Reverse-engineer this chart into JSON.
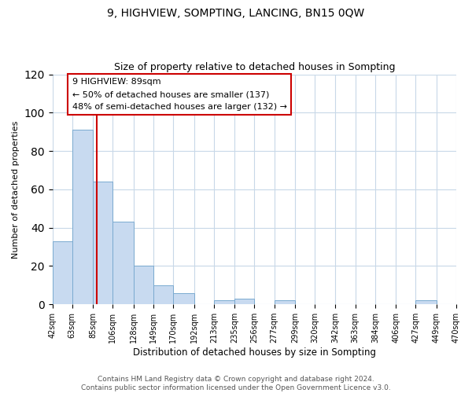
{
  "title": "9, HIGHVIEW, SOMPTING, LANCING, BN15 0QW",
  "subtitle": "Size of property relative to detached houses in Sompting",
  "xlabel": "Distribution of detached houses by size in Sompting",
  "ylabel": "Number of detached properties",
  "bin_edges": [
    42,
    63,
    85,
    106,
    128,
    149,
    170,
    192,
    213,
    235,
    256,
    277,
    299,
    320,
    342,
    363,
    384,
    406,
    427,
    449,
    470
  ],
  "bin_labels": [
    "42sqm",
    "63sqm",
    "85sqm",
    "106sqm",
    "128sqm",
    "149sqm",
    "170sqm",
    "192sqm",
    "213sqm",
    "235sqm",
    "256sqm",
    "277sqm",
    "299sqm",
    "320sqm",
    "342sqm",
    "363sqm",
    "384sqm",
    "406sqm",
    "427sqm",
    "449sqm",
    "470sqm"
  ],
  "counts": [
    33,
    91,
    64,
    43,
    20,
    10,
    6,
    0,
    2,
    3,
    0,
    2,
    0,
    0,
    0,
    0,
    0,
    0,
    2,
    0
  ],
  "bar_color": "#c8daf0",
  "bar_edge_color": "#7aaad0",
  "vline_x": 89,
  "vline_color": "#cc0000",
  "ylim": [
    0,
    120
  ],
  "yticks": [
    0,
    20,
    40,
    60,
    80,
    100,
    120
  ],
  "annotation_title": "9 HIGHVIEW: 89sqm",
  "annotation_line1": "← 50% of detached houses are smaller (137)",
  "annotation_line2": "48% of semi-detached houses are larger (132) →",
  "annotation_box_color": "#ffffff",
  "annotation_box_edge_color": "#cc0000",
  "footer_line1": "Contains HM Land Registry data © Crown copyright and database right 2024.",
  "footer_line2": "Contains public sector information licensed under the Open Government Licence v3.0.",
  "background_color": "#ffffff",
  "grid_color": "#c8d8e8"
}
